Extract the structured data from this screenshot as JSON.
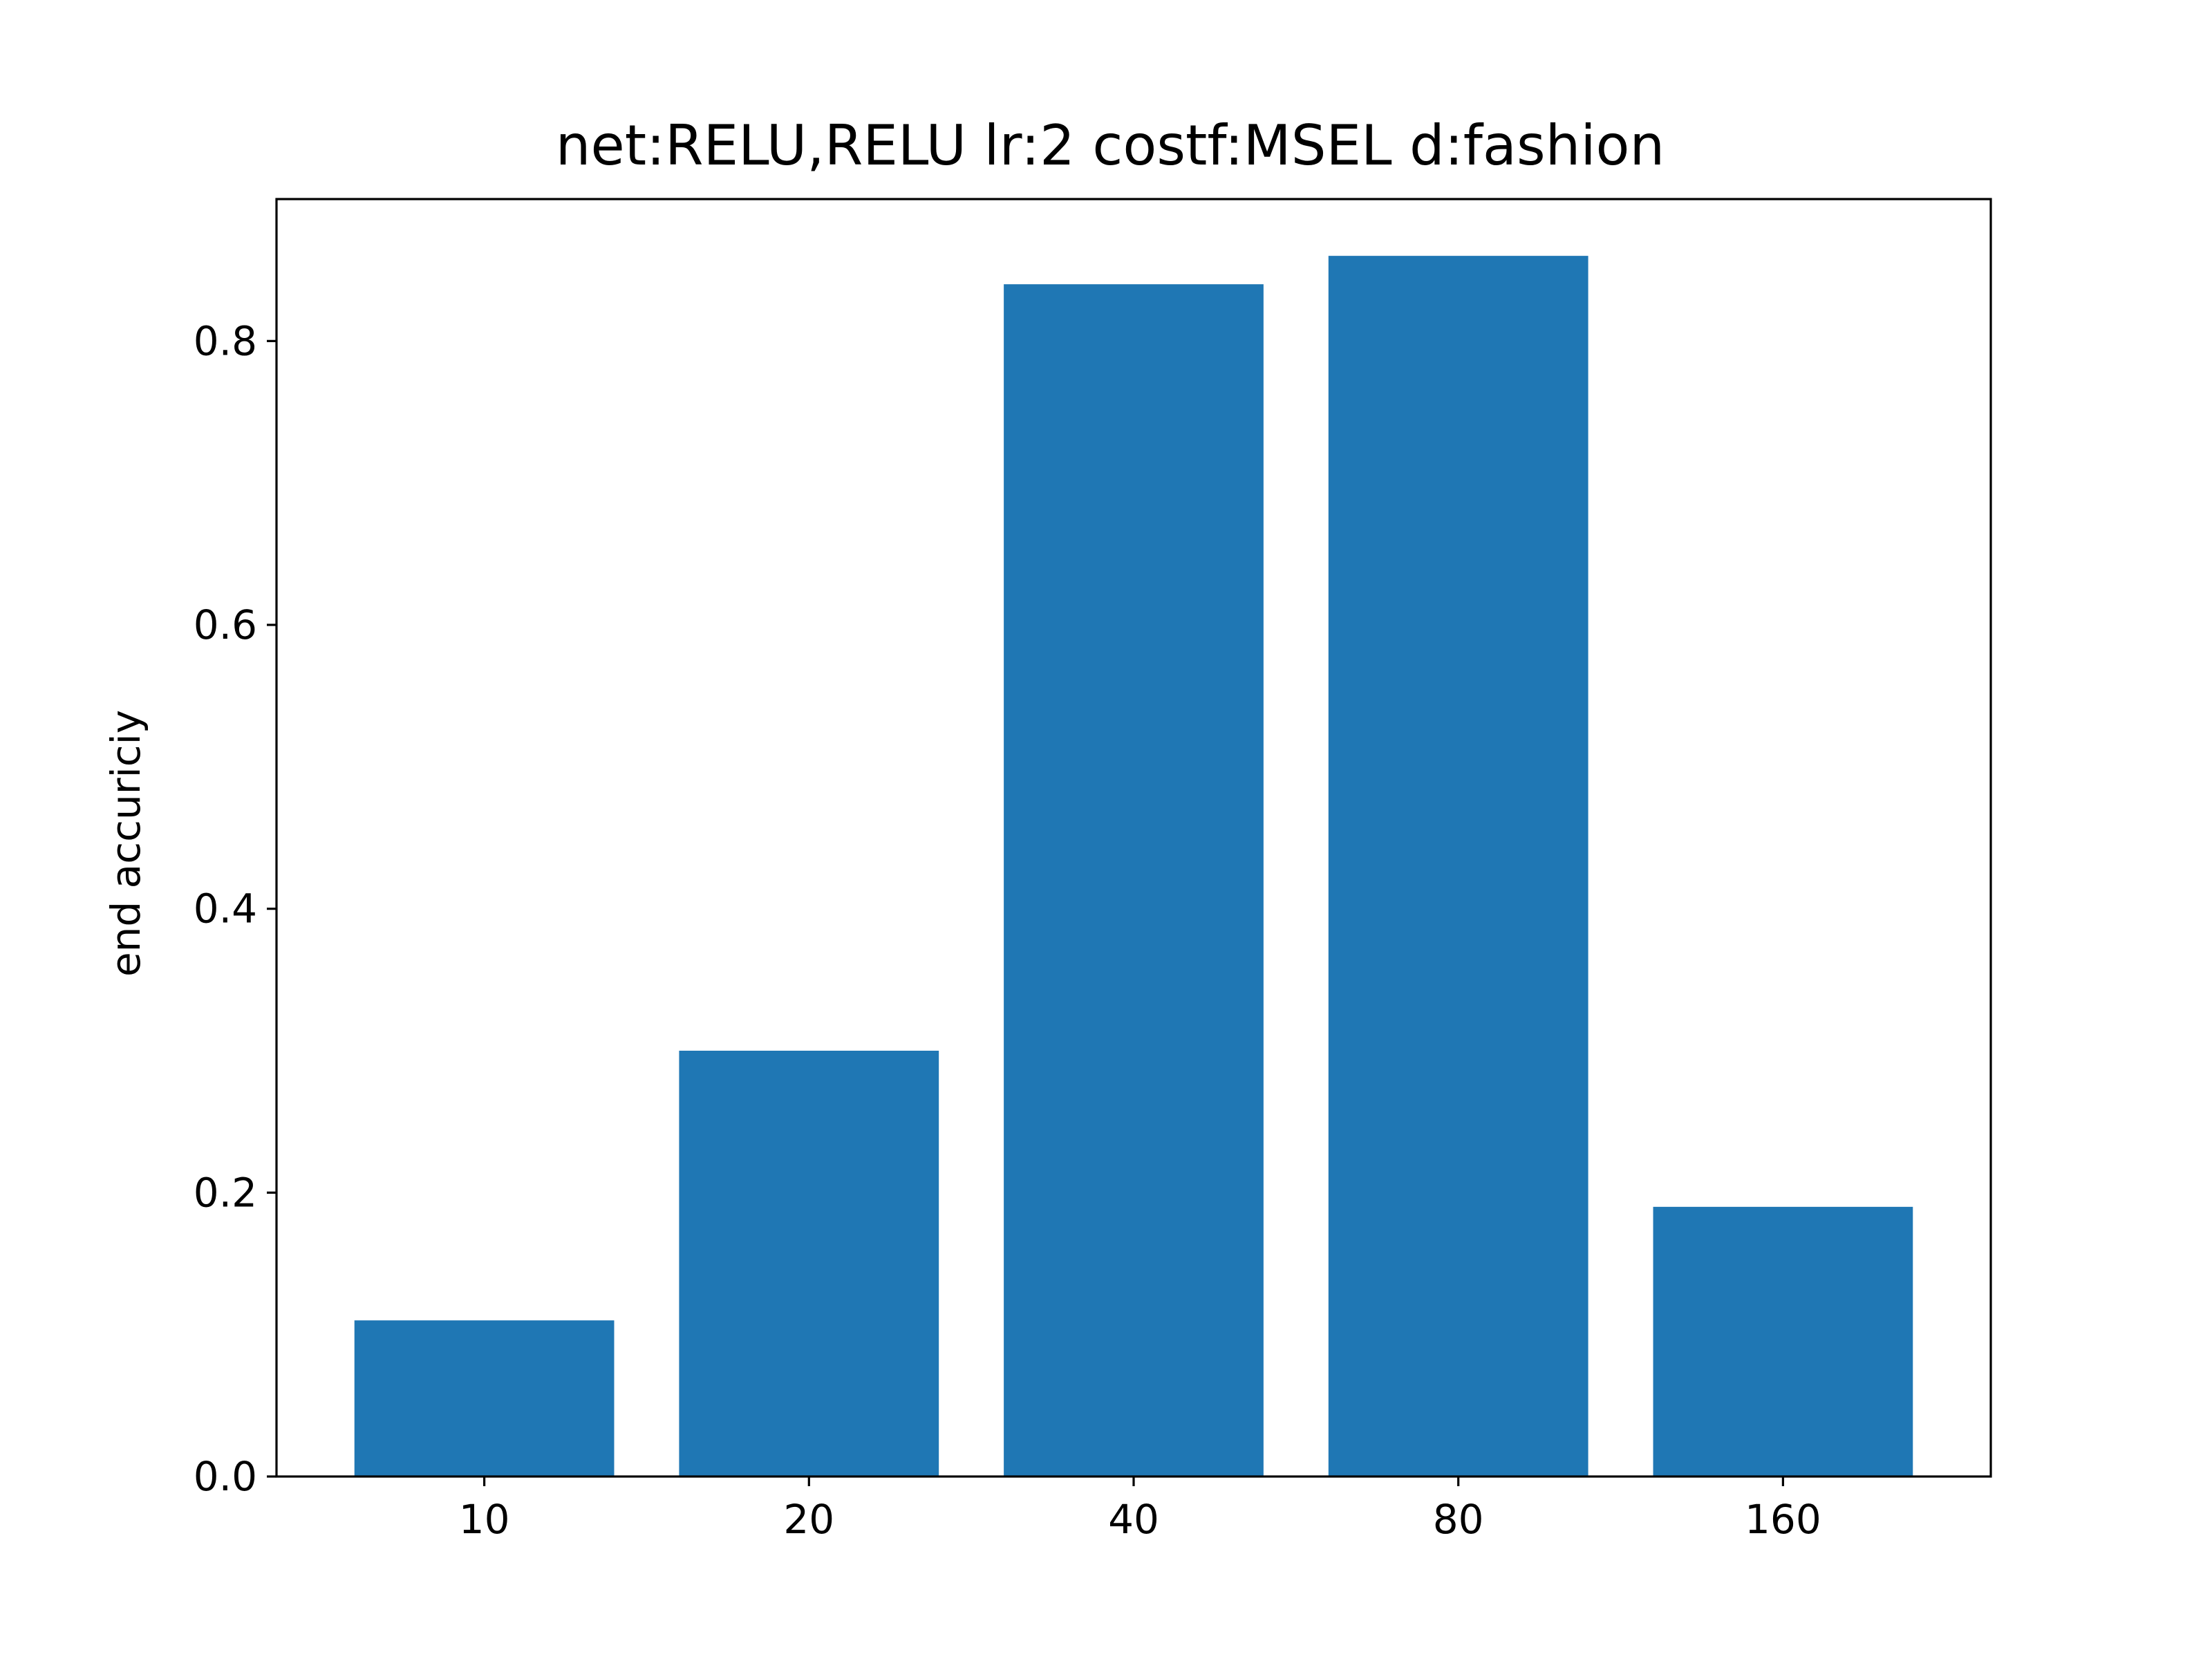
{
  "chart_data": {
    "type": "bar",
    "title": "net:RELU,RELU lr:2 costf:MSEL d:fashion",
    "xlabel": "",
    "ylabel": "end accuriciy",
    "categories": [
      "10",
      "20",
      "40",
      "80",
      "160"
    ],
    "values": [
      0.11,
      0.3,
      0.84,
      0.86,
      0.19
    ],
    "ylim": [
      0,
      0.9
    ],
    "yticks": [
      "0.0",
      "0.2",
      "0.4",
      "0.6",
      "0.8"
    ],
    "ytick_values": [
      0,
      0.2,
      0.4,
      0.6,
      0.8
    ],
    "grid": false,
    "bar_color": "#1f77b4"
  }
}
